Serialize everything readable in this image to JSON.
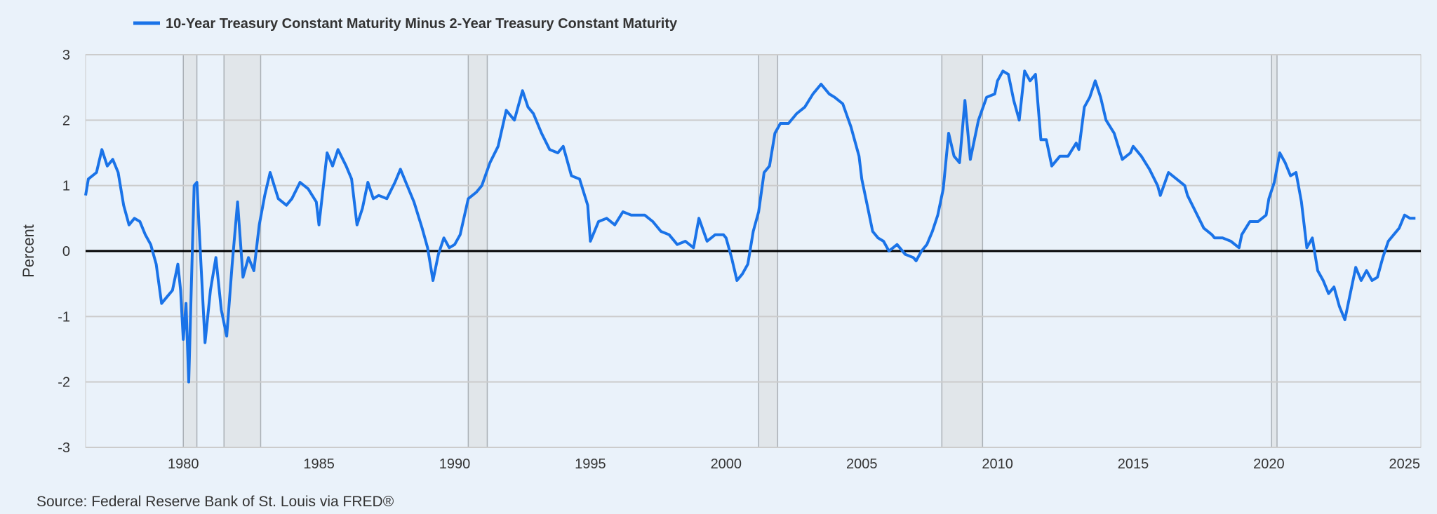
{
  "chart_data": {
    "type": "line",
    "legend_position": "top-left",
    "grid": true,
    "ylabel": "Percent",
    "xlim": [
      1976.4,
      2025.6
    ],
    "ylim": [
      -3,
      3
    ],
    "x_ticks": [
      1980,
      1985,
      1990,
      1995,
      2000,
      2005,
      2010,
      2015,
      2020,
      2025
    ],
    "x_tick_labels": [
      "1980",
      "1985",
      "1990",
      "1995",
      "2000",
      "2005",
      "2010",
      "2015",
      "2020",
      "2025"
    ],
    "y_ticks": [
      3,
      2,
      1,
      0,
      -1,
      -2,
      -3
    ],
    "y_tick_labels": [
      "3",
      "2",
      "1",
      "0",
      "-1",
      "-2",
      "-3"
    ],
    "zero_line": 0,
    "recessions": [
      [
        1980.0,
        1980.5
      ],
      [
        1981.5,
        1982.85
      ],
      [
        1990.5,
        1991.2
      ],
      [
        2001.2,
        2001.9
      ],
      [
        2007.95,
        2009.45
      ],
      [
        2020.1,
        2020.3
      ]
    ],
    "colors": {
      "line": "#1a73e8",
      "recession": "#e1e6ea",
      "recession_edge": "#aab0b6",
      "background": "#eaf2fa",
      "grid": "#cccccc",
      "zero_line": "#000000"
    },
    "series": [
      {
        "name": "10-Year Treasury Constant Maturity Minus 2-Year Treasury Constant Maturity",
        "x": [
          1976.4,
          1976.5,
          1976.8,
          1977.0,
          1977.2,
          1977.4,
          1977.6,
          1977.8,
          1978.0,
          1978.2,
          1978.4,
          1978.6,
          1978.8,
          1979.0,
          1979.2,
          1979.4,
          1979.6,
          1979.8,
          1979.9,
          1980.0,
          1980.1,
          1980.2,
          1980.3,
          1980.4,
          1980.5,
          1980.6,
          1980.8,
          1981.0,
          1981.2,
          1981.4,
          1981.6,
          1981.8,
          1982.0,
          1982.2,
          1982.4,
          1982.6,
          1982.8,
          1983.0,
          1983.2,
          1983.5,
          1983.8,
          1984.0,
          1984.3,
          1984.6,
          1984.9,
          1985.0,
          1985.3,
          1985.5,
          1985.7,
          1986.0,
          1986.2,
          1986.4,
          1986.6,
          1986.8,
          1987.0,
          1987.2,
          1987.5,
          1987.8,
          1988.0,
          1988.2,
          1988.5,
          1988.8,
          1989.0,
          1989.2,
          1989.4,
          1989.6,
          1989.8,
          1990.0,
          1990.2,
          1990.5,
          1990.8,
          1991.0,
          1991.3,
          1991.6,
          1991.9,
          1992.2,
          1992.5,
          1992.7,
          1992.9,
          1993.2,
          1993.5,
          1993.8,
          1994.0,
          1994.3,
          1994.6,
          1994.9,
          1995.0,
          1995.3,
          1995.6,
          1995.9,
          1996.2,
          1996.5,
          1996.8,
          1997.0,
          1997.3,
          1997.6,
          1997.9,
          1998.2,
          1998.5,
          1998.8,
          1999.0,
          1999.3,
          1999.6,
          1999.9,
          2000.0,
          2000.2,
          2000.4,
          2000.6,
          2000.8,
          2001.0,
          2001.2,
          2001.4,
          2001.6,
          2001.8,
          2002.0,
          2002.3,
          2002.6,
          2002.9,
          2003.2,
          2003.5,
          2003.8,
          2004.0,
          2004.3,
          2004.6,
          2004.9,
          2005.0,
          2005.2,
          2005.4,
          2005.6,
          2005.8,
          2006.0,
          2006.3,
          2006.6,
          2006.9,
          2007.0,
          2007.2,
          2007.4,
          2007.6,
          2007.8,
          2008.0,
          2008.2,
          2008.4,
          2008.6,
          2008.8,
          2009.0,
          2009.3,
          2009.6,
          2009.9,
          2010.0,
          2010.2,
          2010.4,
          2010.6,
          2010.8,
          2011.0,
          2011.2,
          2011.4,
          2011.6,
          2011.8,
          2012.0,
          2012.3,
          2012.6,
          2012.9,
          2013.0,
          2013.2,
          2013.4,
          2013.6,
          2013.8,
          2014.0,
          2014.3,
          2014.6,
          2014.9,
          2015.0,
          2015.3,
          2015.6,
          2015.9,
          2016.0,
          2016.3,
          2016.6,
          2016.9,
          2017.0,
          2017.3,
          2017.6,
          2017.9,
          2018.0,
          2018.3,
          2018.6,
          2018.9,
          2019.0,
          2019.3,
          2019.6,
          2019.9,
          2020.0,
          2020.2,
          2020.4,
          2020.6,
          2020.8,
          2021.0,
          2021.2,
          2021.4,
          2021.6,
          2021.8,
          2022.0,
          2022.2,
          2022.4,
          2022.6,
          2022.8,
          2023.0,
          2023.2,
          2023.4,
          2023.6,
          2023.8,
          2024.0,
          2024.2,
          2024.4,
          2024.6,
          2024.8,
          2025.0,
          2025.2,
          2025.4
        ],
        "values": [
          0.85,
          1.1,
          1.2,
          1.55,
          1.3,
          1.4,
          1.2,
          0.7,
          0.4,
          0.5,
          0.45,
          0.25,
          0.1,
          -0.2,
          -0.8,
          -0.7,
          -0.6,
          -0.2,
          -0.6,
          -1.35,
          -0.8,
          -2.0,
          -0.5,
          1.0,
          1.05,
          0.2,
          -1.4,
          -0.6,
          -0.1,
          -0.9,
          -1.3,
          -0.2,
          0.75,
          -0.4,
          -0.1,
          -0.3,
          0.4,
          0.85,
          1.2,
          0.8,
          0.7,
          0.8,
          1.05,
          0.95,
          0.75,
          0.4,
          1.5,
          1.3,
          1.55,
          1.3,
          1.1,
          0.4,
          0.65,
          1.05,
          0.8,
          0.85,
          0.8,
          1.05,
          1.25,
          1.05,
          0.75,
          0.35,
          0.05,
          -0.45,
          -0.05,
          0.2,
          0.05,
          0.1,
          0.25,
          0.8,
          0.9,
          1.0,
          1.35,
          1.6,
          2.15,
          2.0,
          2.45,
          2.2,
          2.1,
          1.8,
          1.55,
          1.5,
          1.6,
          1.15,
          1.1,
          0.7,
          0.15,
          0.45,
          0.5,
          0.4,
          0.6,
          0.55,
          0.55,
          0.55,
          0.45,
          0.3,
          0.25,
          0.1,
          0.15,
          0.05,
          0.5,
          0.15,
          0.25,
          0.25,
          0.2,
          -0.1,
          -0.45,
          -0.35,
          -0.2,
          0.3,
          0.6,
          1.2,
          1.3,
          1.8,
          1.95,
          1.95,
          2.1,
          2.2,
          2.4,
          2.55,
          2.4,
          2.35,
          2.25,
          1.9,
          1.45,
          1.1,
          0.7,
          0.3,
          0.2,
          0.15,
          0.0,
          0.1,
          -0.05,
          -0.1,
          -0.15,
          0.0,
          0.1,
          0.3,
          0.55,
          0.95,
          1.8,
          1.45,
          1.35,
          2.3,
          1.4,
          2.0,
          2.35,
          2.4,
          2.6,
          2.75,
          2.7,
          2.3,
          2.0,
          2.75,
          2.6,
          2.7,
          1.7,
          1.7,
          1.3,
          1.45,
          1.45,
          1.65,
          1.55,
          2.2,
          2.35,
          2.6,
          2.35,
          2.0,
          1.8,
          1.4,
          1.5,
          1.6,
          1.45,
          1.25,
          1.0,
          0.85,
          1.2,
          1.1,
          1.0,
          0.85,
          0.6,
          0.35,
          0.25,
          0.2,
          0.2,
          0.15,
          0.05,
          0.25,
          0.45,
          0.45,
          0.55,
          0.8,
          1.05,
          1.5,
          1.35,
          1.15,
          1.2,
          0.75,
          0.05,
          0.2,
          -0.3,
          -0.45,
          -0.65,
          -0.55,
          -0.85,
          -1.05,
          -0.65,
          -0.25,
          -0.45,
          -0.3,
          -0.45,
          -0.4,
          -0.1,
          0.15,
          0.25,
          0.35,
          0.55,
          0.5,
          0.5
        ]
      }
    ]
  },
  "source_note": "Source: Federal Reserve Bank of St. Louis via FRED®"
}
